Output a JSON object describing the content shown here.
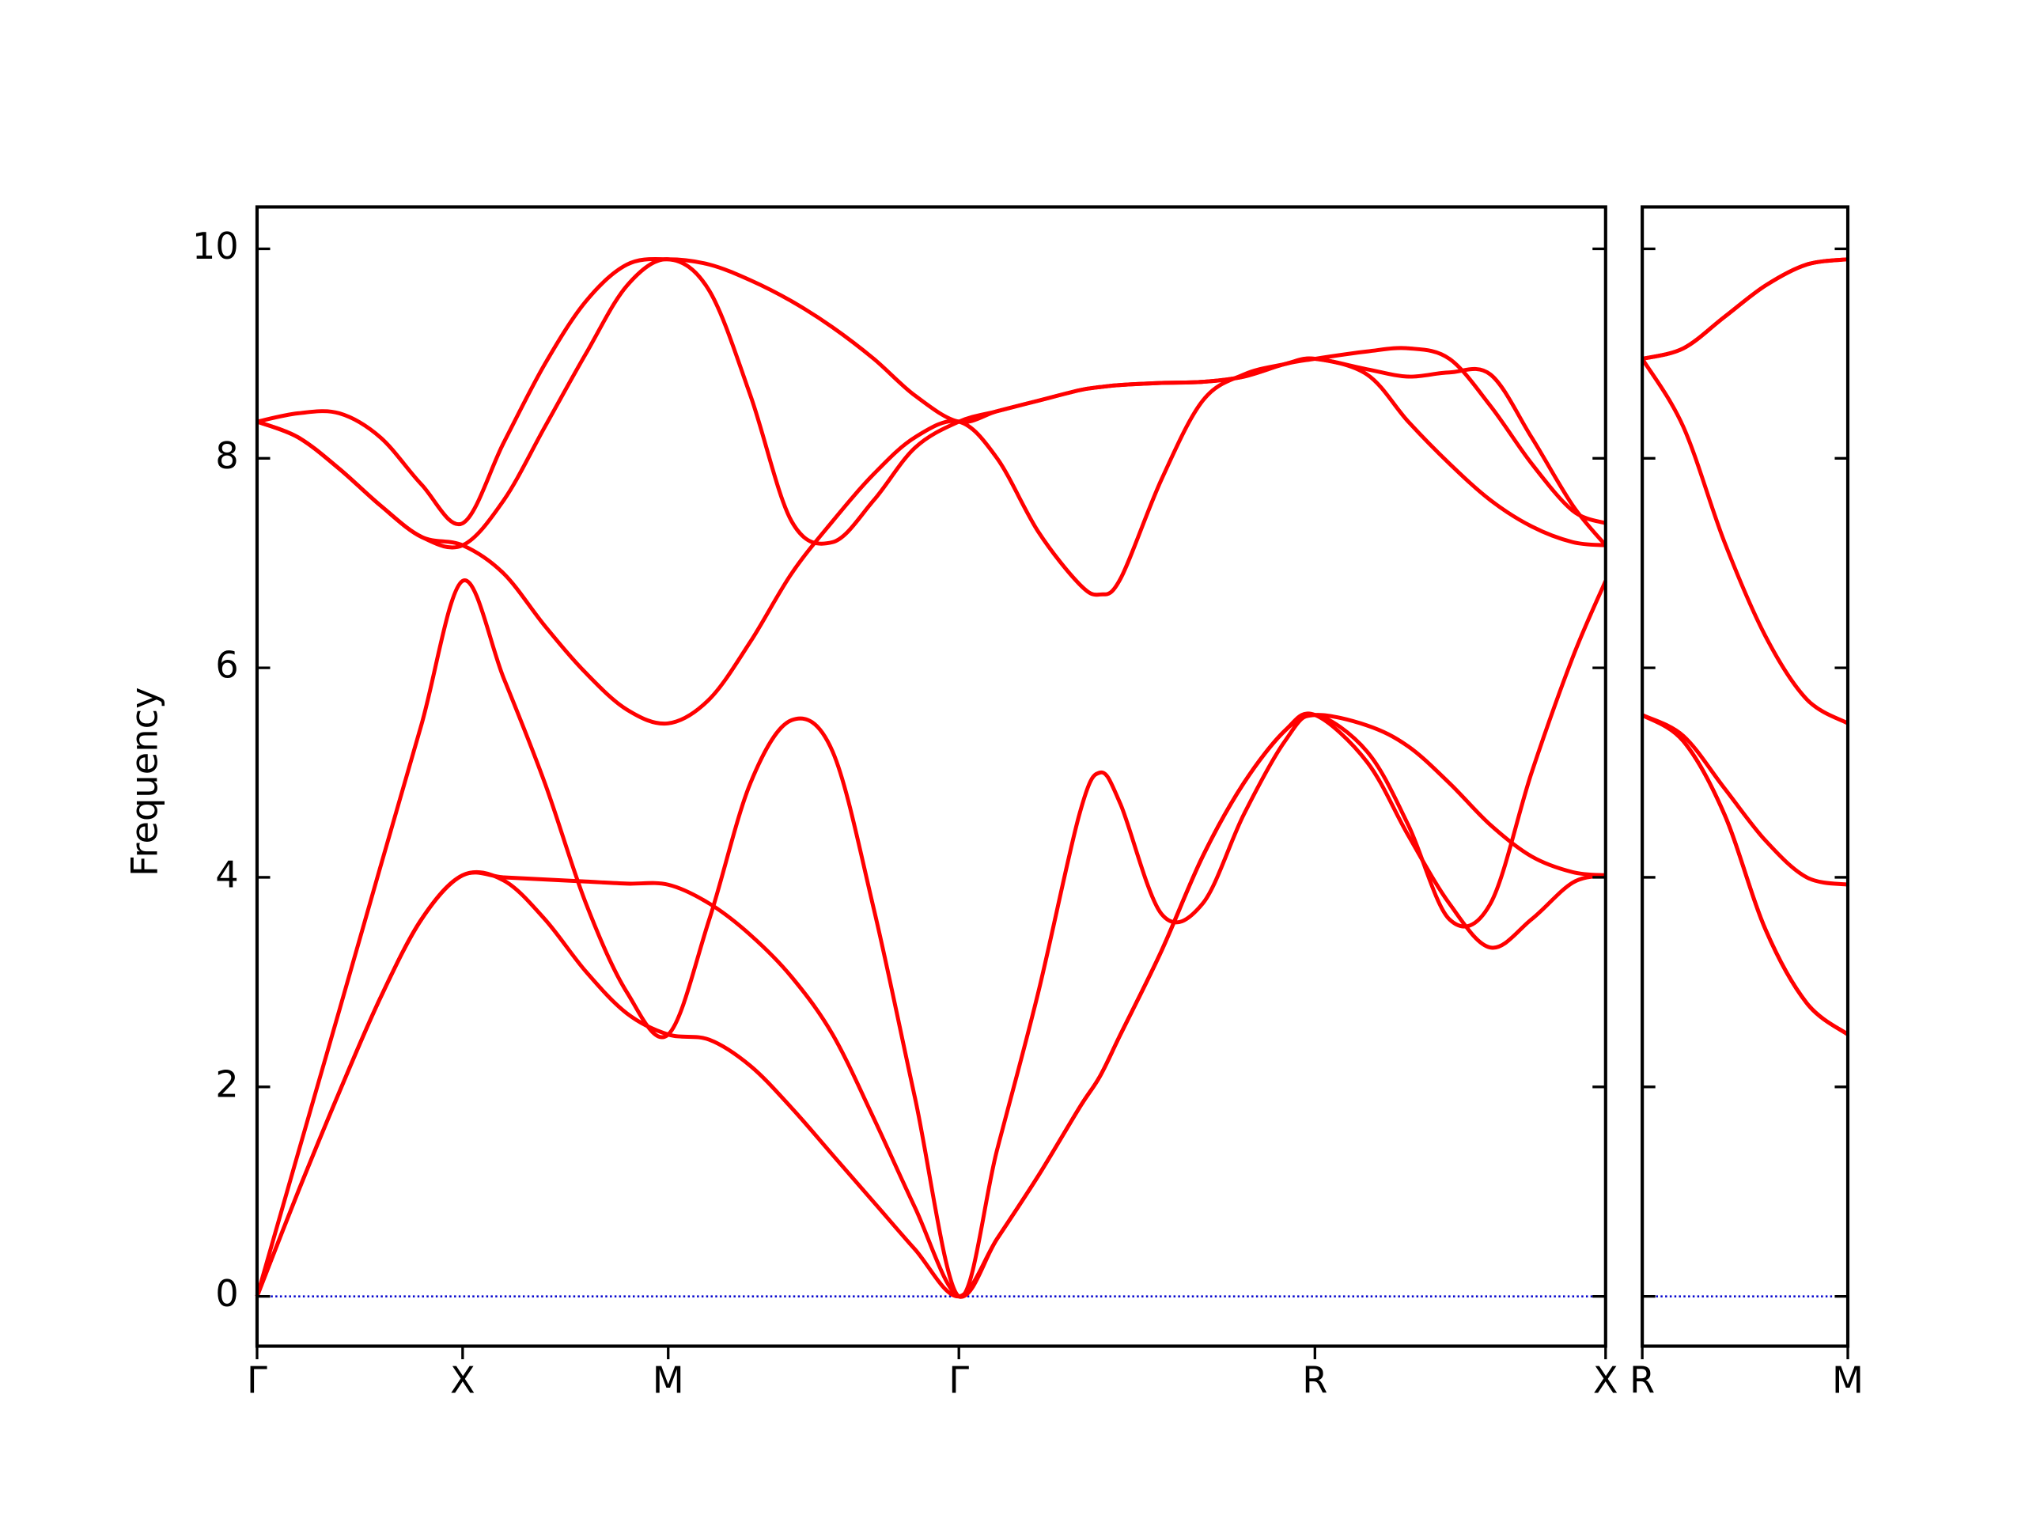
{
  "chart_data": [
    {
      "type": "line",
      "ylabel": "Frequency",
      "x": [
        0,
        0.1,
        0.2,
        0.3,
        0.4,
        0.5,
        0.6,
        0.7,
        0.8,
        0.9,
        1.0,
        1.1,
        1.2,
        1.3,
        1.4,
        1.5,
        1.6,
        1.707,
        1.8,
        1.9,
        2.0,
        2.05,
        2.1,
        2.2,
        2.3,
        2.4,
        2.5,
        2.573,
        2.7,
        2.8,
        2.9,
        3.0,
        3.1,
        3.2,
        3.28
      ],
      "xlim": [
        0,
        3.28
      ],
      "xticks": [
        {
          "value": 0,
          "label": "Γ"
        },
        {
          "value": 0.5,
          "label": "X"
        },
        {
          "value": 1.0,
          "label": "M"
        },
        {
          "value": 1.707,
          "label": "Γ"
        },
        {
          "value": 2.573,
          "label": "R"
        },
        {
          "value": 3.28,
          "label": "X"
        }
      ],
      "ylim": [
        -0.475,
        10.4
      ],
      "yticks": [
        0,
        2,
        4,
        6,
        8,
        10
      ],
      "hline": 0,
      "hline_color": "#0000cc",
      "series": [
        {
          "color": "#ff0000",
          "values": [
            0,
            1.0,
            1.95,
            2.85,
            3.6,
            4.02,
            3.97,
            3.6,
            3.1,
            2.7,
            2.5,
            2.45,
            2.2,
            1.8,
            1.35,
            0.9,
            0.45,
            0,
            0.55,
            1.15,
            1.8,
            2.1,
            2.5,
            3.3,
            4.2,
            4.9,
            5.4,
            5.55,
            5.45,
            5.25,
            4.9,
            4.5,
            4.2,
            4.05,
            4.02
          ]
        },
        {
          "color": "#ff0000",
          "values": [
            0,
            1.0,
            1.95,
            2.85,
            3.6,
            4.02,
            4.0,
            3.98,
            3.96,
            3.94,
            3.93,
            3.75,
            3.45,
            3.05,
            2.5,
            1.7,
            0.85,
            0,
            0.55,
            1.15,
            1.8,
            2.1,
            2.5,
            3.3,
            4.2,
            4.9,
            5.4,
            5.55,
            5.1,
            4.4,
            3.75,
            3.33,
            3.6,
            3.95,
            4.02
          ]
        },
        {
          "color": "#ff0000",
          "values": [
            0,
            1.37,
            2.73,
            4.1,
            5.46,
            6.83,
            5.9,
            4.9,
            3.75,
            2.9,
            2.5,
            3.6,
            4.9,
            5.5,
            5.2,
            3.7,
            1.9,
            0,
            1.4,
            2.9,
            4.6,
            5.0,
            4.7,
            3.65,
            3.75,
            4.6,
            5.3,
            5.55,
            5.2,
            4.5,
            3.6,
            3.75,
            5.0,
            6.1,
            6.83
          ]
        },
        {
          "color": "#ff0000",
          "values": [
            8.35,
            8.2,
            7.9,
            7.55,
            7.25,
            7.17,
            6.9,
            6.4,
            5.95,
            5.6,
            5.47,
            5.7,
            6.25,
            6.9,
            7.4,
            7.85,
            8.2,
            8.35,
            8.0,
            7.3,
            6.8,
            6.7,
            6.85,
            7.8,
            8.55,
            8.8,
            8.9,
            8.95,
            8.8,
            8.35,
            7.95,
            7.6,
            7.35,
            7.2,
            7.17
          ]
        },
        {
          "color": "#ff0000",
          "values": [
            8.35,
            8.2,
            7.9,
            7.55,
            7.25,
            7.17,
            7.6,
            8.3,
            9.0,
            9.65,
            9.9,
            9.6,
            8.6,
            7.4,
            7.2,
            7.6,
            8.1,
            8.35,
            8.45,
            8.55,
            8.65,
            8.68,
            8.7,
            8.72,
            8.73,
            8.78,
            8.9,
            8.95,
            9.02,
            9.05,
            8.95,
            8.5,
            7.95,
            7.5,
            7.38
          ]
        },
        {
          "color": "#ff0000",
          "values": [
            8.35,
            8.43,
            8.43,
            8.2,
            7.75,
            7.38,
            8.15,
            8.9,
            9.5,
            9.85,
            9.9,
            9.85,
            9.7,
            9.5,
            9.25,
            8.95,
            8.6,
            8.35,
            8.45,
            8.55,
            8.65,
            8.68,
            8.7,
            8.72,
            8.73,
            8.78,
            8.9,
            8.95,
            8.85,
            8.78,
            8.82,
            8.8,
            8.2,
            7.55,
            7.17
          ]
        }
      ]
    },
    {
      "type": "line",
      "x": [
        0,
        0.1,
        0.2,
        0.3,
        0.4,
        0.5
      ],
      "xlim": [
        0,
        0.5
      ],
      "xticks": [
        {
          "value": 0,
          "label": "R"
        },
        {
          "value": 0.5,
          "label": "M"
        }
      ],
      "ylim": [
        -0.475,
        10.4
      ],
      "hline": 0,
      "hline_color": "#0000cc",
      "series": [
        {
          "color": "#ff0000",
          "values": [
            5.55,
            5.3,
            4.6,
            3.5,
            2.8,
            2.5
          ]
        },
        {
          "color": "#ff0000",
          "values": [
            5.55,
            5.3,
            4.6,
            3.5,
            2.8,
            2.5
          ]
        },
        {
          "color": "#ff0000",
          "values": [
            5.55,
            5.35,
            4.85,
            4.35,
            4.0,
            3.93
          ]
        },
        {
          "color": "#ff0000",
          "values": [
            8.95,
            8.3,
            7.2,
            6.3,
            5.7,
            5.47
          ]
        },
        {
          "color": "#ff0000",
          "values": [
            8.95,
            9.05,
            9.35,
            9.65,
            9.85,
            9.9
          ]
        },
        {
          "color": "#ff0000",
          "values": [
            8.95,
            9.05,
            9.35,
            9.65,
            9.85,
            9.9
          ]
        }
      ]
    }
  ]
}
